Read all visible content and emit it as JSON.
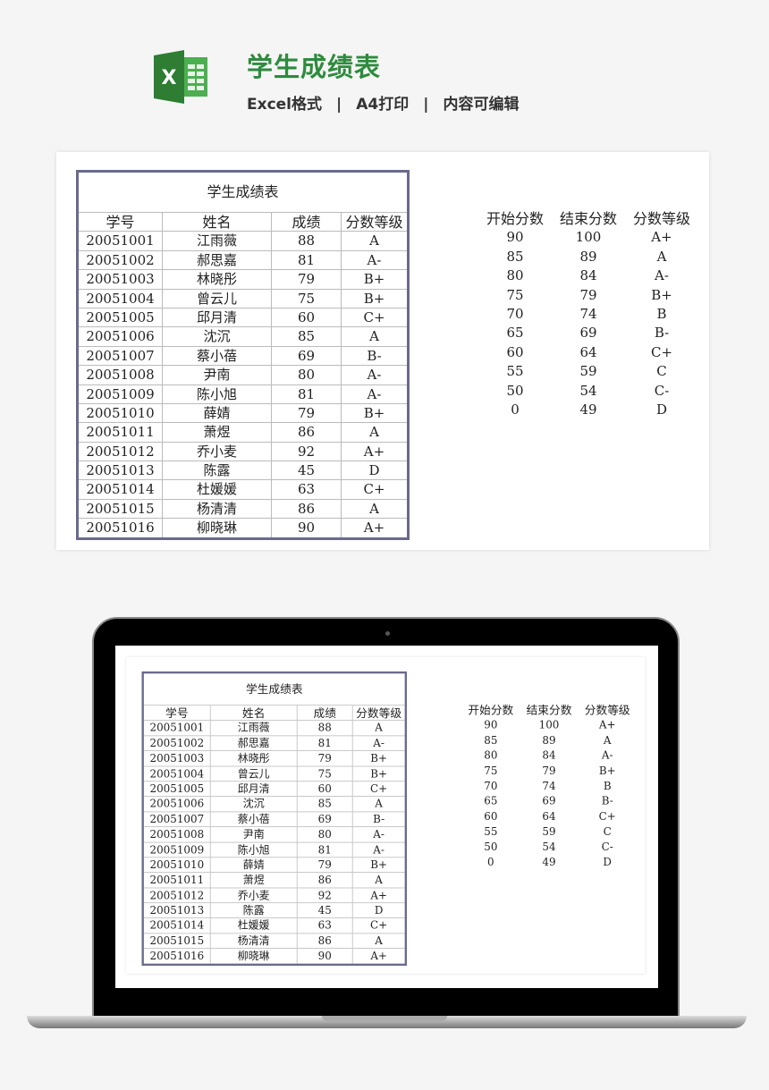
{
  "header": {
    "title": "学生成绩表",
    "subtitle": [
      "Excel格式",
      "A4打印",
      "内容可编辑"
    ],
    "separator": "|",
    "logo_icon": "excel-icon",
    "accent": "#2e8b3e"
  },
  "sheet": {
    "title": "学生成绩表",
    "columns": [
      "学号",
      "姓名",
      "成绩",
      "分数等级"
    ],
    "rows": [
      [
        "20051001",
        "江雨薇",
        "88",
        "A"
      ],
      [
        "20051002",
        "郝思嘉",
        "81",
        "A-"
      ],
      [
        "20051003",
        "林晓彤",
        "79",
        "B+"
      ],
      [
        "20051004",
        "曾云儿",
        "75",
        "B+"
      ],
      [
        "20051005",
        "邱月清",
        "60",
        "C+"
      ],
      [
        "20051006",
        "沈沉",
        "85",
        "A"
      ],
      [
        "20051007",
        "蔡小蓓",
        "69",
        "B-"
      ],
      [
        "20051008",
        "尹南",
        "80",
        "A-"
      ],
      [
        "20051009",
        "陈小旭",
        "81",
        "A-"
      ],
      [
        "20051010",
        "薛婧",
        "79",
        "B+"
      ],
      [
        "20051011",
        "萧煜",
        "86",
        "A"
      ],
      [
        "20051012",
        "乔小麦",
        "92",
        "A+"
      ],
      [
        "20051013",
        "陈露",
        "45",
        "D"
      ],
      [
        "20051014",
        "杜媛媛",
        "63",
        "C+"
      ],
      [
        "20051015",
        "杨清清",
        "86",
        "A"
      ],
      [
        "20051016",
        "柳晓琳",
        "90",
        "A+"
      ]
    ],
    "ref_columns": [
      "开始分数",
      "结束分数",
      "分数等级"
    ],
    "ref_rows": [
      [
        "90",
        "100",
        "A+"
      ],
      [
        "85",
        "89",
        "A"
      ],
      [
        "80",
        "84",
        "A-"
      ],
      [
        "75",
        "79",
        "B+"
      ],
      [
        "70",
        "74",
        "B"
      ],
      [
        "65",
        "69",
        "B-"
      ],
      [
        "60",
        "64",
        "C+"
      ],
      [
        "55",
        "59",
        "C"
      ],
      [
        "50",
        "54",
        "C-"
      ],
      [
        "0",
        "49",
        "D"
      ]
    ],
    "border_color": "#6a6a8e"
  }
}
